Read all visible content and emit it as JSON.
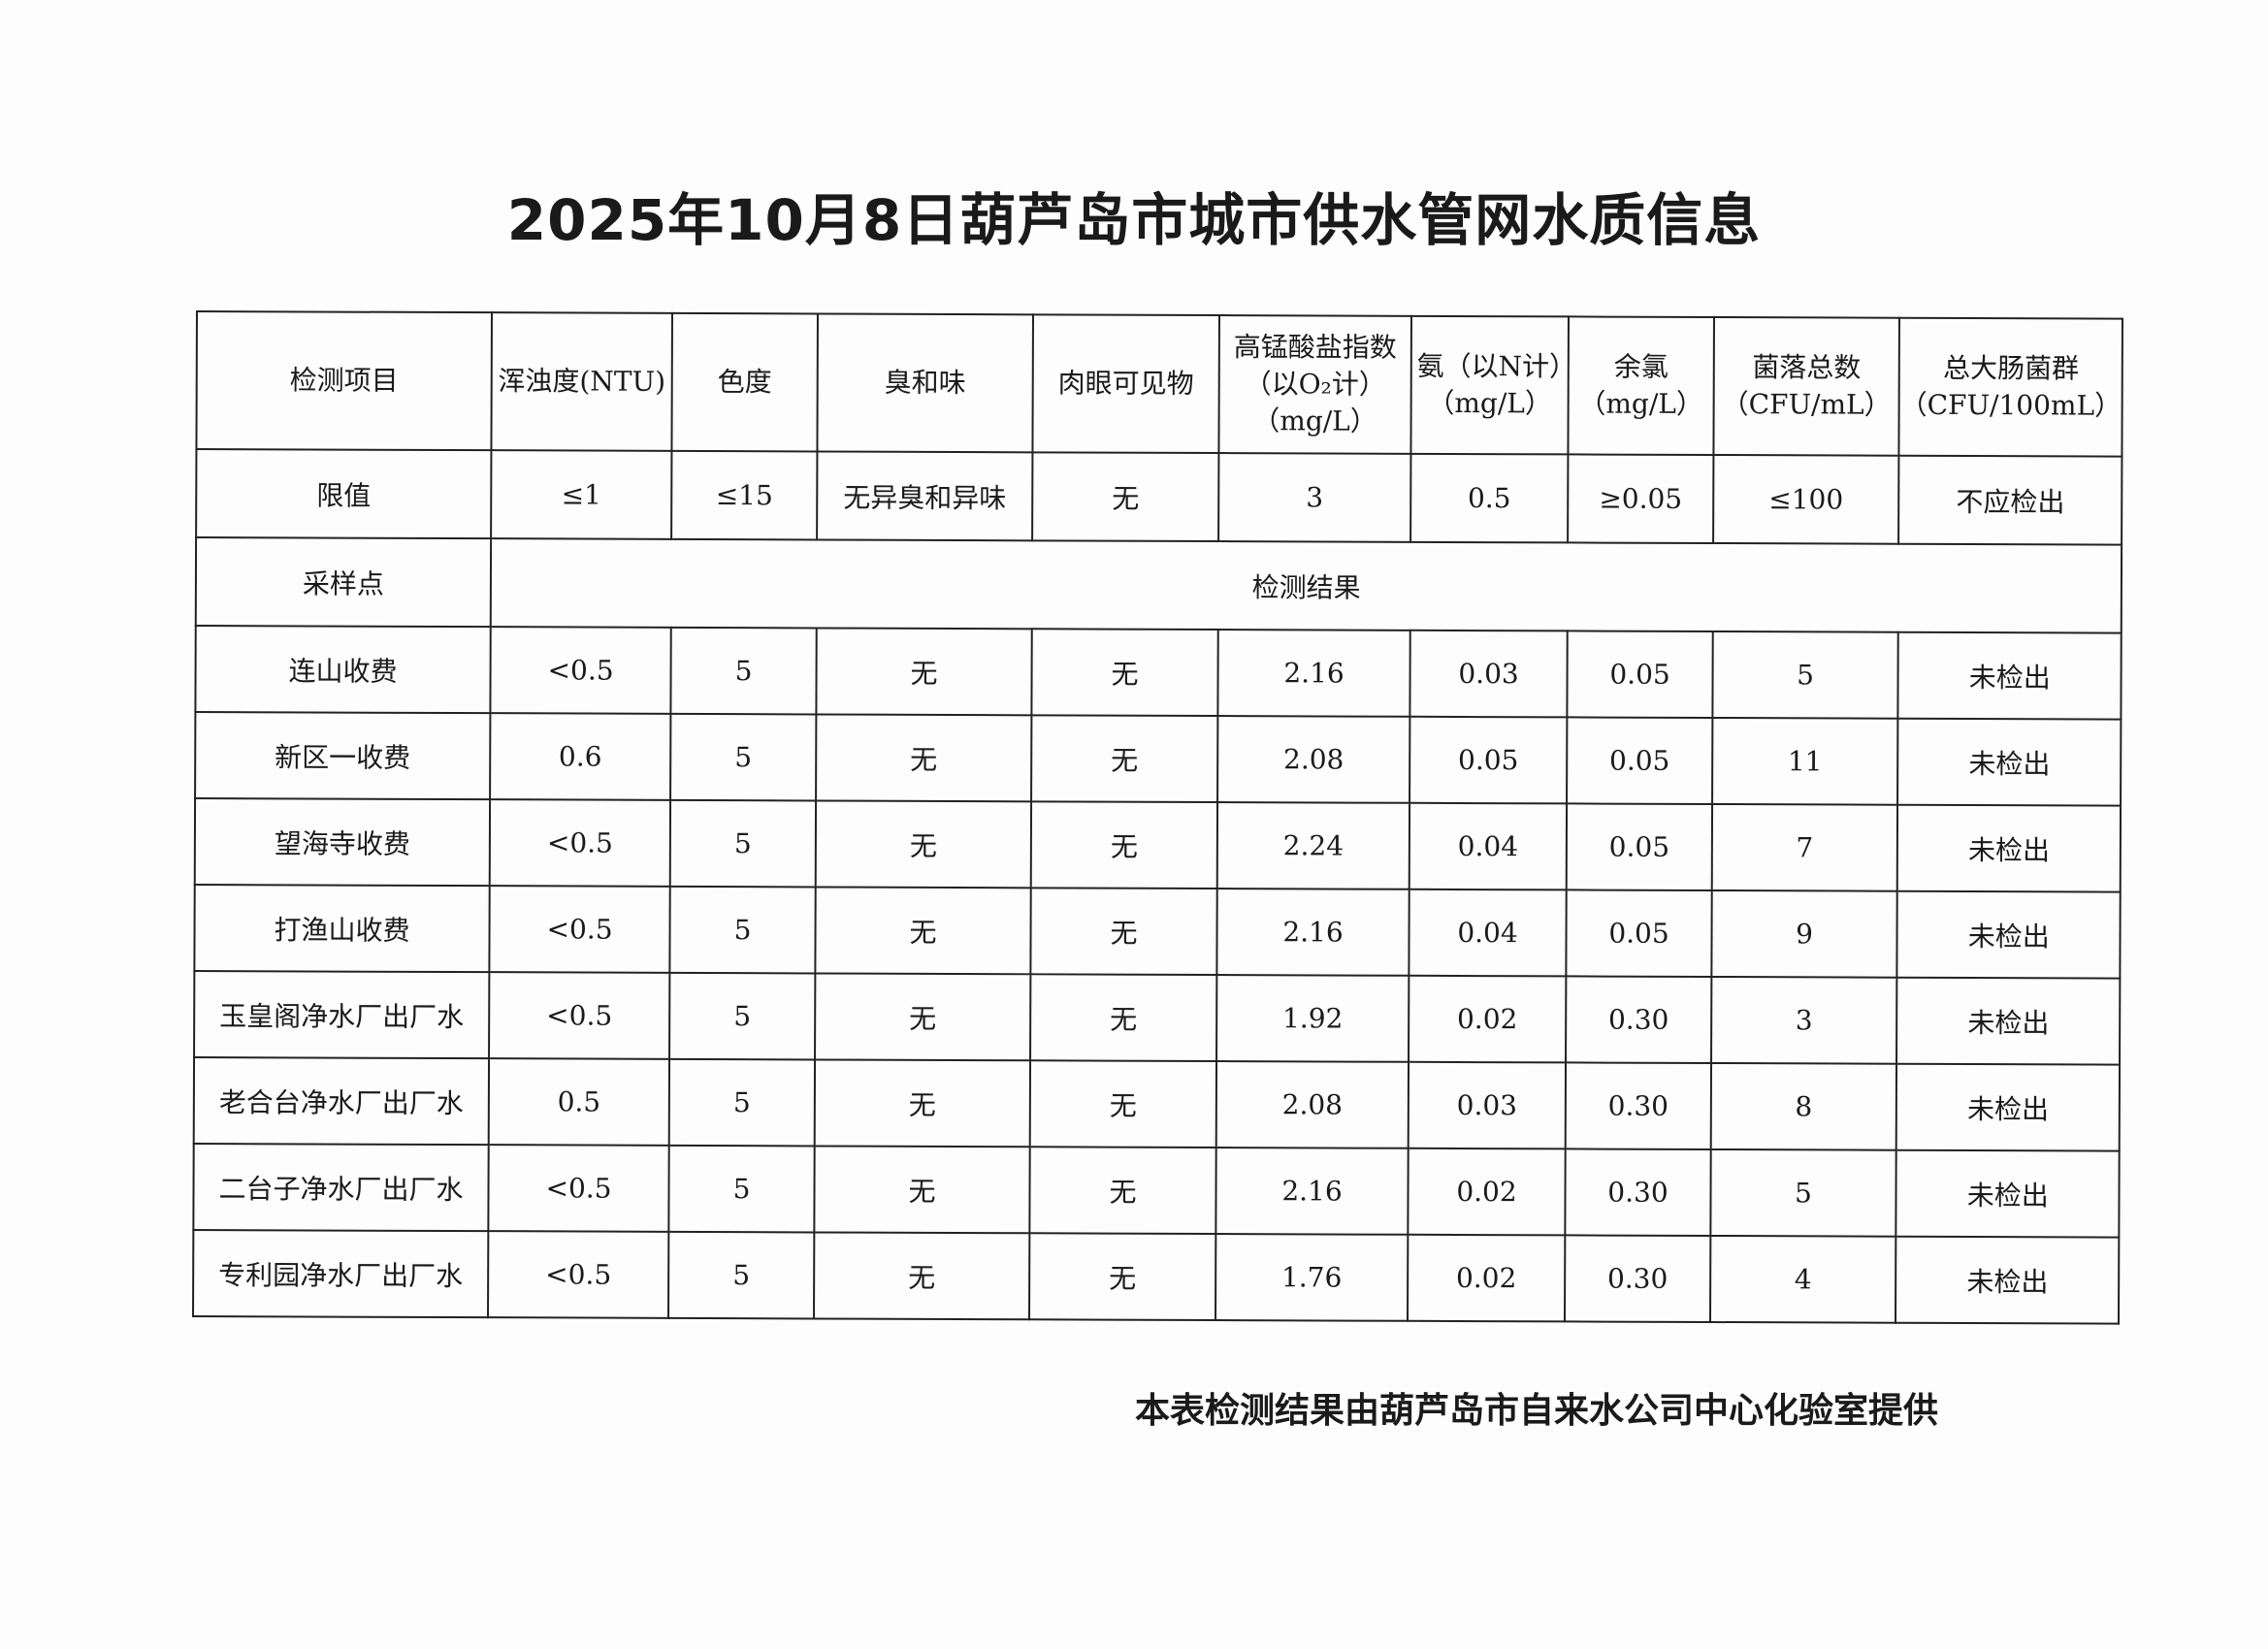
{
  "title": "2025年10月8日葫芦岛市城市供水管网水质信息",
  "headers": [
    "检测项目",
    "浑浊度(NTU)",
    "色度",
    "臭和味",
    "肉眼可见物",
    "高锰酸盐指数（以O₂计）（mg/L）",
    "氨（以N计）（mg/L）",
    "余氯（mg/L）",
    "菌落总数（CFU/mL）",
    "总大肠菌群（CFU/100mL）"
  ],
  "limits": [
    "限值",
    "≤1",
    "≤15",
    "无异臭和异味",
    "无",
    "3",
    "0.5",
    "≥0.05",
    "≤100",
    "不应检出"
  ],
  "sample_label": "采样点",
  "result_label": "检测结果",
  "rows": [
    [
      "连山收费",
      "<0.5",
      "5",
      "无",
      "无",
      "2.16",
      "0.03",
      "0.05",
      "5",
      "未检出"
    ],
    [
      "新区一收费",
      "0.6",
      "5",
      "无",
      "无",
      "2.08",
      "0.05",
      "0.05",
      "11",
      "未检出"
    ],
    [
      "望海寺收费",
      "<0.5",
      "5",
      "无",
      "无",
      "2.24",
      "0.04",
      "0.05",
      "7",
      "未检出"
    ],
    [
      "打渔山收费",
      "<0.5",
      "5",
      "无",
      "无",
      "2.16",
      "0.04",
      "0.05",
      "9",
      "未检出"
    ],
    [
      "玉皇阁净水厂出厂水",
      "<0.5",
      "5",
      "无",
      "无",
      "1.92",
      "0.02",
      "0.30",
      "3",
      "未检出"
    ],
    [
      "老合台净水厂出厂水",
      "0.5",
      "5",
      "无",
      "无",
      "2.08",
      "0.03",
      "0.30",
      "8",
      "未检出"
    ],
    [
      "二台子净水厂出厂水",
      "<0.5",
      "5",
      "无",
      "无",
      "2.16",
      "0.02",
      "0.30",
      "5",
      "未检出"
    ],
    [
      "专利园净水厂出厂水",
      "<0.5",
      "5",
      "无",
      "无",
      "1.76",
      "0.02",
      "0.30",
      "4",
      "未检出"
    ]
  ],
  "footer": "本表检测结果由葫芦岛市自来水公司中心化验室提供"
}
